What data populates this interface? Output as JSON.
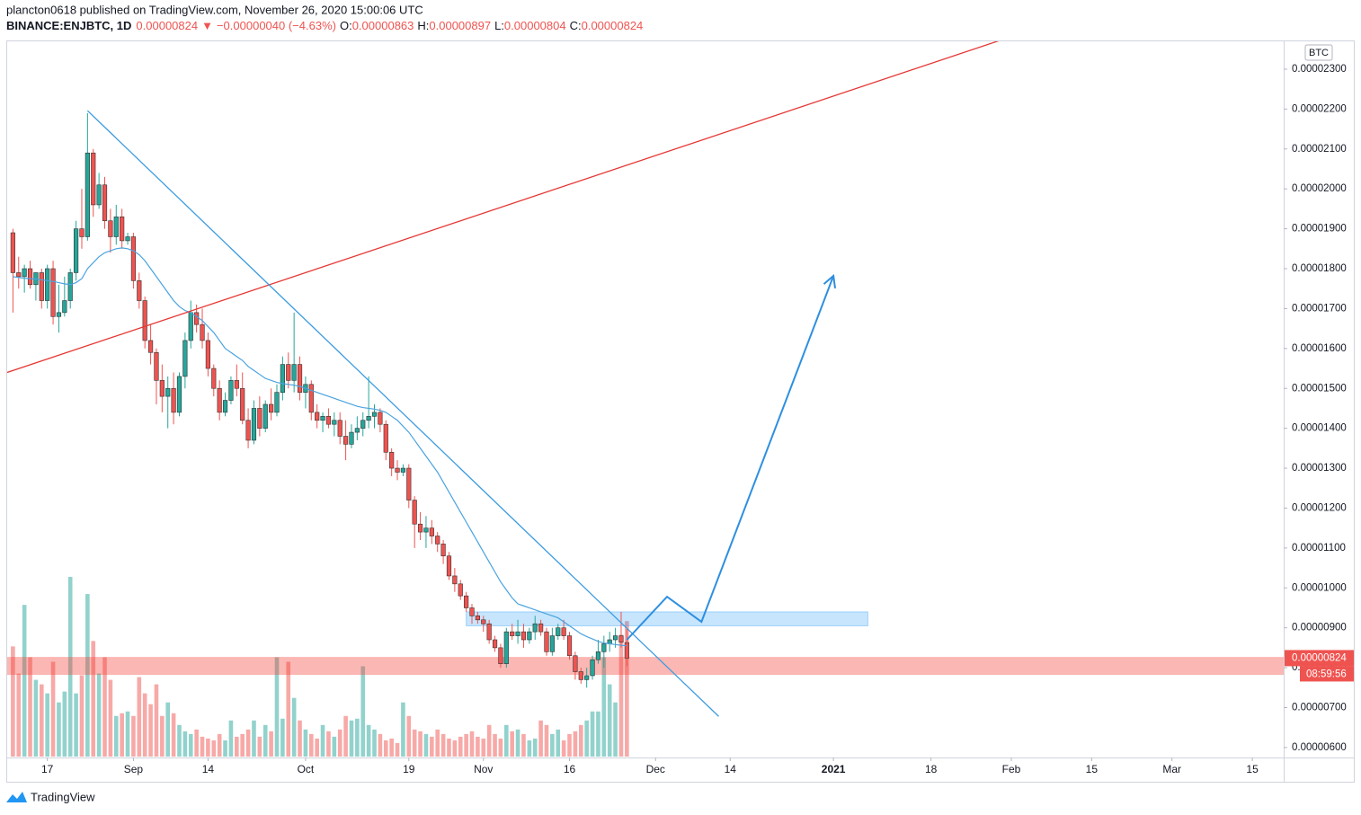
{
  "header": {
    "publisher": "plancton0618 published on TradingView.com, November 26, 2020 15:00:06 UTC",
    "symbol": "BINANCE:ENJBTC, 1D",
    "last": "0.00000824",
    "arrow": "▼",
    "change": "−0.00000040 (−4.63%)",
    "ohlc": [
      {
        "label": "O:",
        "value": "0.00000863"
      },
      {
        "label": "H:",
        "value": "0.00000897"
      },
      {
        "label": "L:",
        "value": "0.00000804"
      },
      {
        "label": "C:",
        "value": "0.00000824"
      }
    ]
  },
  "footer": {
    "brand": "TradingView"
  },
  "chart_data": {
    "type": "candlestick",
    "y_unit": "BTC",
    "price_label": "0.00000824",
    "countdown": "08:59:56",
    "up_color": "#26a69a",
    "down_color": "#ef5350",
    "up_volume_color": "rgba(38,166,154,0.5)",
    "down_volume_color": "rgba(239,83,80,0.5)",
    "ma_color": "#4aa3df",
    "grid": false,
    "xlim": [
      "2020-08-10",
      "2021-03-20"
    ],
    "xticks": [
      {
        "value": "2020-08-17",
        "label": "17"
      },
      {
        "value": "2020-09-01",
        "label": "Sep"
      },
      {
        "value": "2020-09-14",
        "label": "14"
      },
      {
        "value": "2020-10-01",
        "label": "Oct"
      },
      {
        "value": "2020-10-19",
        "label": "19"
      },
      {
        "value": "2020-11-01",
        "label": "Nov"
      },
      {
        "value": "2020-11-16",
        "label": "16"
      },
      {
        "value": "2020-12-01",
        "label": "Dec"
      },
      {
        "value": "2020-12-14",
        "label": "14"
      },
      {
        "value": "2021-01-01",
        "label": "2021"
      },
      {
        "value": "2021-01-18",
        "label": "18"
      },
      {
        "value": "2021-02-01",
        "label": "Feb"
      },
      {
        "value": "2021-02-15",
        "label": "15"
      },
      {
        "value": "2021-03-01",
        "label": "Mar"
      },
      {
        "value": "2021-03-15",
        "label": "15"
      }
    ],
    "ylim": [
      5.75e-06,
      2.372e-05
    ],
    "yticks": [
      {
        "value": 6e-06,
        "label": "0.00000600"
      },
      {
        "value": 7e-06,
        "label": "0.00000700"
      },
      {
        "value": 8e-06,
        "label": "0.00000800"
      },
      {
        "value": 9e-06,
        "label": "0.00000900"
      },
      {
        "value": 1e-05,
        "label": "0.00001000"
      },
      {
        "value": 1.1e-05,
        "label": "0.00001100"
      },
      {
        "value": 1.2e-05,
        "label": "0.00001200"
      },
      {
        "value": 1.3e-05,
        "label": "0.00001300"
      },
      {
        "value": 1.4e-05,
        "label": "0.00001400"
      },
      {
        "value": 1.5e-05,
        "label": "0.00001500"
      },
      {
        "value": 1.6e-05,
        "label": "0.00001600"
      },
      {
        "value": 1.7e-05,
        "label": "0.00001700"
      },
      {
        "value": 1.8e-05,
        "label": "0.00001800"
      },
      {
        "value": 1.9e-05,
        "label": "0.00001900"
      },
      {
        "value": 2e-05,
        "label": "0.00002000"
      },
      {
        "value": 2.1e-05,
        "label": "0.00002100"
      },
      {
        "value": 2.2e-05,
        "label": "0.00002200"
      },
      {
        "value": 2.3e-05,
        "label": "0.00002300"
      }
    ],
    "x": [
      "2020-08-11",
      "2020-08-12",
      "2020-08-13",
      "2020-08-14",
      "2020-08-15",
      "2020-08-16",
      "2020-08-17",
      "2020-08-18",
      "2020-08-19",
      "2020-08-20",
      "2020-08-21",
      "2020-08-22",
      "2020-08-23",
      "2020-08-24",
      "2020-08-25",
      "2020-08-26",
      "2020-08-27",
      "2020-08-28",
      "2020-08-29",
      "2020-08-30",
      "2020-08-31",
      "2020-09-01",
      "2020-09-02",
      "2020-09-03",
      "2020-09-04",
      "2020-09-05",
      "2020-09-06",
      "2020-09-07",
      "2020-09-08",
      "2020-09-09",
      "2020-09-10",
      "2020-09-11",
      "2020-09-12",
      "2020-09-13",
      "2020-09-14",
      "2020-09-15",
      "2020-09-16",
      "2020-09-17",
      "2020-09-18",
      "2020-09-19",
      "2020-09-20",
      "2020-09-21",
      "2020-09-22",
      "2020-09-23",
      "2020-09-24",
      "2020-09-25",
      "2020-09-26",
      "2020-09-27",
      "2020-09-28",
      "2020-09-29",
      "2020-09-30",
      "2020-10-01",
      "2020-10-02",
      "2020-10-03",
      "2020-10-04",
      "2020-10-05",
      "2020-10-06",
      "2020-10-07",
      "2020-10-08",
      "2020-10-09",
      "2020-10-10",
      "2020-10-11",
      "2020-10-12",
      "2020-10-13",
      "2020-10-14",
      "2020-10-15",
      "2020-10-16",
      "2020-10-17",
      "2020-10-18",
      "2020-10-19",
      "2020-10-20",
      "2020-10-21",
      "2020-10-22",
      "2020-10-23",
      "2020-10-24",
      "2020-10-25",
      "2020-10-26",
      "2020-10-27",
      "2020-10-28",
      "2020-10-29",
      "2020-10-30",
      "2020-10-31",
      "2020-11-01",
      "2020-11-02",
      "2020-11-03",
      "2020-11-04",
      "2020-11-05",
      "2020-11-06",
      "2020-11-07",
      "2020-11-08",
      "2020-11-09",
      "2020-11-10",
      "2020-11-11",
      "2020-11-12",
      "2020-11-13",
      "2020-11-14",
      "2020-11-15",
      "2020-11-16",
      "2020-11-17",
      "2020-11-18",
      "2020-11-19",
      "2020-11-20",
      "2020-11-21",
      "2020-11-22",
      "2020-11-23",
      "2020-11-24",
      "2020-11-25",
      "2020-11-26"
    ],
    "open": [
      1.89e-05,
      1.79e-05,
      1.78e-05,
      1.8e-05,
      1.76e-05,
      1.79e-05,
      1.72e-05,
      1.8e-05,
      1.68e-05,
      1.69e-05,
      1.72e-05,
      1.79e-05,
      1.9e-05,
      1.88e-05,
      2.09e-05,
      1.96e-05,
      2.01e-05,
      1.92e-05,
      1.88e-05,
      1.93e-05,
      1.87e-05,
      1.88e-05,
      1.77e-05,
      1.72e-05,
      1.62e-05,
      1.59e-05,
      1.52e-05,
      1.48e-05,
      1.5e-05,
      1.44e-05,
      1.53e-05,
      1.62e-05,
      1.69e-05,
      1.66e-05,
      1.62e-05,
      1.55e-05,
      1.5e-05,
      1.44e-05,
      1.47e-05,
      1.52e-05,
      1.5e-05,
      1.42e-05,
      1.37e-05,
      1.45e-05,
      1.4e-05,
      1.46e-05,
      1.44e-05,
      1.49e-05,
      1.56e-05,
      1.52e-05,
      1.56e-05,
      1.49e-05,
      1.51e-05,
      1.44e-05,
      1.42e-05,
      1.43e-05,
      1.41e-05,
      1.42e-05,
      1.38e-05,
      1.36e-05,
      1.39e-05,
      1.4e-05,
      1.42e-05,
      1.43e-05,
      1.44e-05,
      1.41e-05,
      1.34e-05,
      1.3e-05,
      1.29e-05,
      1.3e-05,
      1.22e-05,
      1.16e-05,
      1.14e-05,
      1.15e-05,
      1.13e-05,
      1.11e-05,
      1.08e-05,
      1.03e-05,
      1.01e-05,
      9.8e-06,
      9.5e-06,
      9.3e-06,
      9.2e-06,
      9.1e-06,
      8.7e-06,
      8.5e-06,
      8.1e-06,
      8.9e-06,
      8.8e-06,
      8.9e-06,
      8.7e-06,
      8.9e-06,
      9.1e-06,
      8.9e-06,
      8.4e-06,
      8.8e-06,
      9e-06,
      8.8e-06,
      8.3e-06,
      7.9e-06,
      7.7e-06,
      7.8e-06,
      8.2e-06,
      8.4e-06,
      8.6e-06,
      8.7e-06,
      8.8e-06,
      8.63e-06
    ],
    "high": [
      1.9e-05,
      1.83e-05,
      1.81e-05,
      1.82e-05,
      1.79e-05,
      1.8e-05,
      1.81e-05,
      1.82e-05,
      1.76e-05,
      1.78e-05,
      1.8e-05,
      1.92e-05,
      2e-05,
      2.19e-05,
      2.1e-05,
      2.04e-05,
      2.03e-05,
      1.95e-05,
      1.96e-05,
      1.95e-05,
      1.89e-05,
      1.89e-05,
      1.79e-05,
      1.73e-05,
      1.66e-05,
      1.6e-05,
      1.56e-05,
      1.53e-05,
      1.54e-05,
      1.54e-05,
      1.64e-05,
      1.72e-05,
      1.71e-05,
      1.7e-05,
      1.64e-05,
      1.56e-05,
      1.52e-05,
      1.49e-05,
      1.53e-05,
      1.56e-05,
      1.54e-05,
      1.45e-05,
      1.47e-05,
      1.48e-05,
      1.47e-05,
      1.5e-05,
      1.51e-05,
      1.58e-05,
      1.59e-05,
      1.69e-05,
      1.58e-05,
      1.53e-05,
      1.52e-05,
      1.46e-05,
      1.44e-05,
      1.45e-05,
      1.44e-05,
      1.44e-05,
      1.42e-05,
      1.41e-05,
      1.43e-05,
      1.44e-05,
      1.53e-05,
      1.46e-05,
      1.45e-05,
      1.42e-05,
      1.35e-05,
      1.32e-05,
      1.31e-05,
      1.31e-05,
      1.23e-05,
      1.19e-05,
      1.18e-05,
      1.17e-05,
      1.14e-05,
      1.12e-05,
      1.09e-05,
      1.05e-05,
      1.02e-05,
      9.9e-06,
      9.6e-06,
      9.4e-06,
      9.3e-06,
      9.2e-06,
      8.8e-06,
      8.6e-06,
      9e-06,
      9.1e-06,
      9.2e-06,
      9.1e-06,
      9e-06,
      9.3e-06,
      9.2e-06,
      9e-06,
      9e-06,
      9.1e-06,
      9.2e-06,
      8.9e-06,
      8.4e-06,
      8e-06,
      8e-06,
      8.3e-06,
      8.7e-06,
      8.8e-06,
      8.9e-06,
      9e-06,
      9.4e-06,
      8.97e-06
    ],
    "low": [
      1.69e-05,
      1.75e-05,
      1.74e-05,
      1.75e-05,
      1.72e-05,
      1.7e-05,
      1.7e-05,
      1.66e-05,
      1.64e-05,
      1.68e-05,
      1.7e-05,
      1.77e-05,
      1.85e-05,
      1.87e-05,
      1.93e-05,
      1.95e-05,
      1.9e-05,
      1.84e-05,
      1.86e-05,
      1.85e-05,
      1.86e-05,
      1.75e-05,
      1.7e-05,
      1.6e-05,
      1.56e-05,
      1.46e-05,
      1.44e-05,
      1.4e-05,
      1.41e-05,
      1.43e-05,
      1.5e-05,
      1.6e-05,
      1.64e-05,
      1.6e-05,
      1.53e-05,
      1.48e-05,
      1.42e-05,
      1.43e-05,
      1.46e-05,
      1.48e-05,
      1.41e-05,
      1.35e-05,
      1.36e-05,
      1.38e-05,
      1.39e-05,
      1.42e-05,
      1.43e-05,
      1.47e-05,
      1.5e-05,
      1.49e-05,
      1.47e-05,
      1.45e-05,
      1.42e-05,
      1.4e-05,
      1.39e-05,
      1.4e-05,
      1.38e-05,
      1.36e-05,
      1.32e-05,
      1.35e-05,
      1.37e-05,
      1.38e-05,
      1.4e-05,
      1.4e-05,
      1.39e-05,
      1.32e-05,
      1.28e-05,
      1.27e-05,
      1.28e-05,
      1.2e-05,
      1.1e-05,
      1.12e-05,
      1.1e-05,
      1.11e-05,
      1.09e-05,
      1.06e-05,
      1.02e-05,
      9.9e-06,
      9.7e-06,
      9.4e-06,
      9.1e-06,
      9.1e-06,
      8.9e-06,
      8.6e-06,
      8.4e-06,
      8e-06,
      8e-06,
      8.7e-06,
      8.6e-06,
      8.5e-06,
      8.6e-06,
      8.7e-06,
      8.8e-06,
      8.3e-06,
      8.3e-06,
      8.7e-06,
      8.7e-06,
      8.2e-06,
      7.7e-06,
      7.6e-06,
      7.5e-06,
      7.7e-06,
      8.1e-06,
      8e-06,
      8.4e-06,
      8.5e-06,
      8.5e-06,
      8.04e-06
    ],
    "close": [
      1.79e-05,
      1.78e-05,
      1.8e-05,
      1.76e-05,
      1.79e-05,
      1.72e-05,
      1.8e-05,
      1.68e-05,
      1.69e-05,
      1.72e-05,
      1.79e-05,
      1.9e-05,
      1.88e-05,
      2.09e-05,
      1.96e-05,
      2.01e-05,
      1.92e-05,
      1.88e-05,
      1.93e-05,
      1.87e-05,
      1.88e-05,
      1.77e-05,
      1.72e-05,
      1.62e-05,
      1.59e-05,
      1.52e-05,
      1.48e-05,
      1.5e-05,
      1.44e-05,
      1.53e-05,
      1.62e-05,
      1.69e-05,
      1.66e-05,
      1.62e-05,
      1.55e-05,
      1.5e-05,
      1.44e-05,
      1.47e-05,
      1.52e-05,
      1.5e-05,
      1.42e-05,
      1.37e-05,
      1.45e-05,
      1.4e-05,
      1.46e-05,
      1.44e-05,
      1.49e-05,
      1.56e-05,
      1.52e-05,
      1.56e-05,
      1.49e-05,
      1.51e-05,
      1.44e-05,
      1.42e-05,
      1.43e-05,
      1.41e-05,
      1.42e-05,
      1.38e-05,
      1.36e-05,
      1.39e-05,
      1.4e-05,
      1.42e-05,
      1.43e-05,
      1.44e-05,
      1.41e-05,
      1.34e-05,
      1.3e-05,
      1.29e-05,
      1.3e-05,
      1.22e-05,
      1.16e-05,
      1.14e-05,
      1.15e-05,
      1.13e-05,
      1.11e-05,
      1.08e-05,
      1.03e-05,
      1.01e-05,
      9.8e-06,
      9.5e-06,
      9.3e-06,
      9.2e-06,
      9.1e-06,
      8.7e-06,
      8.5e-06,
      8.1e-06,
      8.9e-06,
      8.8e-06,
      8.9e-06,
      8.7e-06,
      8.9e-06,
      9.1e-06,
      8.9e-06,
      8.4e-06,
      8.8e-06,
      9e-06,
      8.8e-06,
      8.3e-06,
      7.9e-06,
      7.7e-06,
      7.8e-06,
      8.2e-06,
      8.4e-06,
      8.6e-06,
      8.7e-06,
      8.8e-06,
      8.64e-06,
      8.24e-06
    ],
    "volume": [
      122,
      92,
      168,
      110,
      85,
      80,
      70,
      105,
      60,
      72,
      199,
      70,
      90,
      180,
      128,
      92,
      110,
      85,
      45,
      48,
      50,
      45,
      88,
      70,
      58,
      80,
      45,
      60,
      48,
      35,
      28,
      25,
      30,
      22,
      20,
      18,
      25,
      18,
      40,
      22,
      25,
      30,
      40,
      22,
      35,
      28,
      110,
      42,
      105,
      65,
      40,
      30,
      25,
      20,
      35,
      28,
      22,
      30,
      45,
      40,
      42,
      100,
      35,
      30,
      25,
      18,
      20,
      15,
      60,
      45,
      30,
      28,
      25,
      22,
      30,
      25,
      20,
      18,
      22,
      25,
      28,
      22,
      20,
      35,
      25,
      20,
      35,
      28,
      30,
      25,
      18,
      20,
      40,
      35,
      25,
      30,
      18,
      25,
      28,
      35,
      40,
      50,
      50,
      110,
      80,
      60,
      135,
      150
    ],
    "ma": [
      1.78e-05,
      1.778e-05,
      1.776e-05,
      1.775e-05,
      1.774e-05,
      1.772e-05,
      1.77e-05,
      1.768e-05,
      1.765e-05,
      1.762e-05,
      1.76e-05,
      1.765e-05,
      1.775e-05,
      1.8e-05,
      1.815e-05,
      1.83e-05,
      1.84e-05,
      1.845e-05,
      1.85e-05,
      1.852e-05,
      1.85e-05,
      1.845e-05,
      1.835e-05,
      1.82e-05,
      1.8e-05,
      1.78e-05,
      1.76e-05,
      1.74e-05,
      1.72e-05,
      1.705e-05,
      1.695e-05,
      1.69e-05,
      1.68e-05,
      1.67e-05,
      1.655e-05,
      1.64e-05,
      1.62e-05,
      1.6e-05,
      1.59e-05,
      1.58e-05,
      1.57e-05,
      1.555e-05,
      1.545e-05,
      1.535e-05,
      1.525e-05,
      1.52e-05,
      1.515e-05,
      1.512e-05,
      1.51e-05,
      1.508e-05,
      1.505e-05,
      1.5e-05,
      1.495e-05,
      1.49e-05,
      1.485e-05,
      1.48e-05,
      1.475e-05,
      1.47e-05,
      1.465e-05,
      1.46e-05,
      1.455e-05,
      1.452e-05,
      1.45e-05,
      1.448e-05,
      1.445e-05,
      1.44e-05,
      1.43e-05,
      1.42e-05,
      1.405e-05,
      1.39e-05,
      1.37e-05,
      1.35e-05,
      1.33e-05,
      1.31e-05,
      1.29e-05,
      1.265e-05,
      1.24e-05,
      1.215e-05,
      1.19e-05,
      1.165e-05,
      1.14e-05,
      1.115e-05,
      1.09e-05,
      1.065e-05,
      1.04e-05,
      1.015e-05,
      9.95e-06,
      9.75e-06,
      9.6e-06,
      9.55e-06,
      9.5e-06,
      9.45e-06,
      9.4e-06,
      9.35e-06,
      9.3e-06,
      9.25e-06,
      9.15e-06,
      9.05e-06,
      8.95e-06,
      8.85e-06,
      8.78e-06,
      8.72e-06,
      8.66e-06,
      8.62e-06,
      8.6e-06,
      8.58e-06,
      8.56e-06,
      8.55e-06
    ],
    "drawings": [
      {
        "type": "band",
        "color": "rgba(244,67,54,0.38)",
        "y": [
          7.82e-06,
          8.27e-06
        ]
      },
      {
        "type": "rect",
        "color": "rgba(33,150,243,0.25)",
        "x": [
          "2020-10-29",
          "2021-01-07"
        ],
        "y": [
          9.05e-06,
          9.4e-06
        ]
      },
      {
        "type": "line",
        "color": "#e53935",
        "points": [
          [
            "2020-08-10",
            1.54e-05
          ],
          [
            "2021-01-30",
            2.372e-05
          ]
        ]
      },
      {
        "type": "line",
        "color": "#3c9be0",
        "points": [
          [
            "2020-08-24",
            2.196e-05
          ],
          [
            "2020-12-12",
            6.78e-06
          ]
        ]
      },
      {
        "type": "arrow",
        "color": "#2e8fe0",
        "points": [
          [
            "2020-11-26",
            8.7e-06
          ],
          [
            "2020-12-03",
            9.78e-06
          ],
          [
            "2020-12-09",
            9.15e-06
          ],
          [
            "2021-01-01",
            1.782e-05
          ]
        ]
      }
    ]
  }
}
